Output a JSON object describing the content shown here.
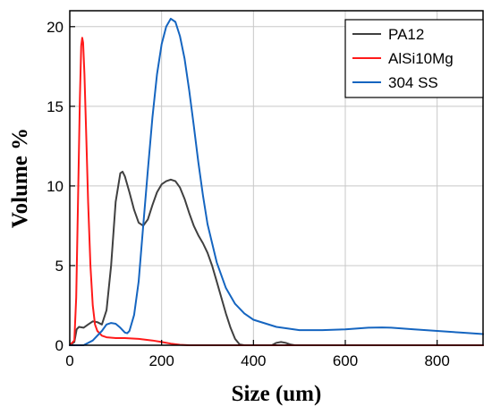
{
  "chart_data": {
    "type": "line",
    "title": "",
    "xlabel": "Size (um)",
    "ylabel": "Volume %",
    "xlim": [
      0,
      900
    ],
    "ylim": [
      0,
      21
    ],
    "xticks": [
      0,
      200,
      400,
      600,
      800
    ],
    "yticks": [
      0,
      5,
      10,
      15,
      20
    ],
    "grid": true,
    "legend_position": "top-right",
    "series": [
      {
        "name": "PA12",
        "color": "#404040",
        "points": [
          [
            0,
            0
          ],
          [
            10,
            0.2
          ],
          [
            15,
            1.0
          ],
          [
            20,
            1.15
          ],
          [
            30,
            1.1
          ],
          [
            40,
            1.3
          ],
          [
            50,
            1.5
          ],
          [
            60,
            1.45
          ],
          [
            70,
            1.3
          ],
          [
            80,
            2.2
          ],
          [
            90,
            5.0
          ],
          [
            100,
            9.0
          ],
          [
            110,
            10.8
          ],
          [
            115,
            10.9
          ],
          [
            120,
            10.6
          ],
          [
            130,
            9.6
          ],
          [
            140,
            8.5
          ],
          [
            150,
            7.7
          ],
          [
            160,
            7.5
          ],
          [
            170,
            7.9
          ],
          [
            180,
            8.8
          ],
          [
            190,
            9.6
          ],
          [
            200,
            10.1
          ],
          [
            210,
            10.3
          ],
          [
            220,
            10.4
          ],
          [
            230,
            10.3
          ],
          [
            240,
            9.9
          ],
          [
            250,
            9.2
          ],
          [
            260,
            8.3
          ],
          [
            270,
            7.5
          ],
          [
            280,
            6.9
          ],
          [
            290,
            6.4
          ],
          [
            300,
            5.8
          ],
          [
            310,
            5.0
          ],
          [
            320,
            4.0
          ],
          [
            330,
            3.0
          ],
          [
            340,
            2.0
          ],
          [
            350,
            1.1
          ],
          [
            360,
            0.4
          ],
          [
            370,
            0.05
          ],
          [
            380,
            0
          ],
          [
            440,
            0
          ],
          [
            450,
            0.15
          ],
          [
            460,
            0.2
          ],
          [
            470,
            0.15
          ],
          [
            480,
            0.05
          ],
          [
            490,
            0
          ],
          [
            900,
            0
          ]
        ]
      },
      {
        "name": "AlSi10Mg",
        "color": "#ff1a1a",
        "points": [
          [
            0,
            0
          ],
          [
            10,
            0.3
          ],
          [
            14,
            3.0
          ],
          [
            18,
            9.0
          ],
          [
            22,
            15.5
          ],
          [
            25,
            18.8
          ],
          [
            27,
            19.3
          ],
          [
            29,
            19.0
          ],
          [
            32,
            17.0
          ],
          [
            36,
            13.0
          ],
          [
            40,
            9.0
          ],
          [
            45,
            5.0
          ],
          [
            50,
            2.5
          ],
          [
            55,
            1.3
          ],
          [
            60,
            0.9
          ],
          [
            70,
            0.6
          ],
          [
            80,
            0.5
          ],
          [
            100,
            0.45
          ],
          [
            120,
            0.45
          ],
          [
            150,
            0.4
          ],
          [
            180,
            0.3
          ],
          [
            200,
            0.2
          ],
          [
            220,
            0.1
          ],
          [
            240,
            0.03
          ],
          [
            260,
            0
          ],
          [
            900,
            0
          ]
        ]
      },
      {
        "name": "304 SS",
        "color": "#1565c0",
        "points": [
          [
            0,
            0
          ],
          [
            30,
            0
          ],
          [
            50,
            0.3
          ],
          [
            70,
            0.9
          ],
          [
            80,
            1.3
          ],
          [
            90,
            1.4
          ],
          [
            100,
            1.35
          ],
          [
            110,
            1.1
          ],
          [
            120,
            0.8
          ],
          [
            125,
            0.75
          ],
          [
            130,
            0.9
          ],
          [
            140,
            1.9
          ],
          [
            150,
            4.0
          ],
          [
            160,
            7.5
          ],
          [
            170,
            11.0
          ],
          [
            180,
            14.3
          ],
          [
            190,
            17.0
          ],
          [
            200,
            18.9
          ],
          [
            210,
            20.0
          ],
          [
            220,
            20.5
          ],
          [
            230,
            20.3
          ],
          [
            240,
            19.4
          ],
          [
            250,
            18.0
          ],
          [
            260,
            16.0
          ],
          [
            270,
            13.8
          ],
          [
            280,
            11.5
          ],
          [
            290,
            9.4
          ],
          [
            300,
            7.6
          ],
          [
            320,
            5.2
          ],
          [
            340,
            3.6
          ],
          [
            360,
            2.6
          ],
          [
            380,
            2.0
          ],
          [
            400,
            1.6
          ],
          [
            450,
            1.15
          ],
          [
            500,
            0.95
          ],
          [
            550,
            0.95
          ],
          [
            600,
            1.0
          ],
          [
            650,
            1.1
          ],
          [
            680,
            1.12
          ],
          [
            700,
            1.1
          ],
          [
            750,
            1.0
          ],
          [
            800,
            0.9
          ],
          [
            850,
            0.8
          ],
          [
            900,
            0.7
          ]
        ]
      }
    ]
  }
}
